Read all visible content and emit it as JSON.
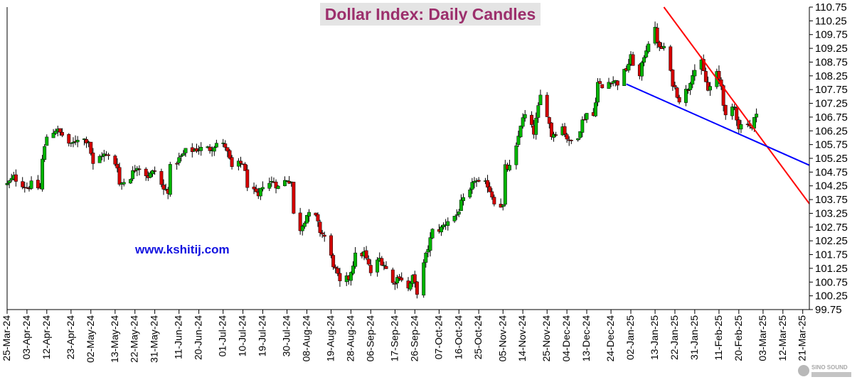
{
  "chart_data": {
    "type": "candlestick",
    "title": "Dollar Index: Daily Candles",
    "annotation": "www.kshitij.com",
    "ylim": [
      99.75,
      110.75
    ],
    "y_ticks": [
      "99.75",
      "100.25",
      "100.75",
      "101.25",
      "101.75",
      "102.25",
      "102.75",
      "103.25",
      "103.75",
      "104.25",
      "104.75",
      "105.25",
      "105.75",
      "106.25",
      "106.75",
      "107.25",
      "107.75",
      "108.25",
      "108.75",
      "109.25",
      "109.75",
      "110.25",
      "110.75"
    ],
    "x_range": [
      "2024-03-25",
      "2025-03-24"
    ],
    "x_ticks": [
      "25-Mar-24",
      "03-Apr-24",
      "12-Apr-24",
      "23-Apr-24",
      "02-May-24",
      "13-May-24",
      "22-May-24",
      "31-May-24",
      "11-Jun-24",
      "20-Jun-24",
      "01-Jul-24",
      "10-Jul-24",
      "19-Jul-24",
      "30-Jul-24",
      "08-Aug-24",
      "19-Aug-24",
      "28-Aug-24",
      "06-Sep-24",
      "17-Sep-24",
      "26-Sep-24",
      "07-Oct-24",
      "16-Oct-24",
      "25-Oct-24",
      "05-Nov-24",
      "14-Nov-24",
      "25-Nov-24",
      "04-Dec-24",
      "13-Dec-24",
      "24-Dec-24",
      "02-Jan-25",
      "13-Jan-25",
      "22-Jan-25",
      "31-Jan-25",
      "11-Feb-25",
      "20-Feb-25",
      "03-Mar-25",
      "12-Mar-25",
      "21-Mar-25"
    ],
    "up_color": "#00b400",
    "down_color": "#d40000",
    "close_path": [
      [
        "2024-03-25",
        104.3
      ],
      [
        "2024-03-28",
        104.55
      ],
      [
        "2024-04-03",
        104.2
      ],
      [
        "2024-04-05",
        104.3
      ],
      [
        "2024-04-09",
        104.15
      ],
      [
        "2024-04-10",
        105.2
      ],
      [
        "2024-04-12",
        106.05
      ],
      [
        "2024-04-16",
        106.3
      ],
      [
        "2024-04-19",
        106.1
      ],
      [
        "2024-04-23",
        105.7
      ],
      [
        "2024-04-26",
        106.0
      ],
      [
        "2024-05-01",
        105.9
      ],
      [
        "2024-05-03",
        105.0
      ],
      [
        "2024-05-07",
        105.4
      ],
      [
        "2024-05-10",
        105.3
      ],
      [
        "2024-05-14",
        105.0
      ],
      [
        "2024-05-15",
        104.3
      ],
      [
        "2024-05-20",
        104.6
      ],
      [
        "2024-05-23",
        105.0
      ],
      [
        "2024-05-28",
        104.6
      ],
      [
        "2024-05-31",
        104.8
      ],
      [
        "2024-06-04",
        104.1
      ],
      [
        "2024-06-06",
        104.1
      ],
      [
        "2024-06-07",
        104.9
      ],
      [
        "2024-06-12",
        105.3
      ],
      [
        "2024-06-14",
        105.5
      ],
      [
        "2024-06-20",
        105.6
      ],
      [
        "2024-06-25",
        105.6
      ],
      [
        "2024-06-28",
        105.8
      ],
      [
        "2024-07-02",
        105.7
      ],
      [
        "2024-07-05",
        104.9
      ],
      [
        "2024-07-10",
        105.1
      ],
      [
        "2024-07-12",
        104.3
      ],
      [
        "2024-07-17",
        103.8
      ],
      [
        "2024-07-19",
        104.3
      ],
      [
        "2024-07-24",
        104.4
      ],
      [
        "2024-07-26",
        104.2
      ],
      [
        "2024-07-30",
        104.5
      ],
      [
        "2024-08-01",
        104.4
      ],
      [
        "2024-08-02",
        103.2
      ],
      [
        "2024-08-05",
        102.7
      ],
      [
        "2024-08-08",
        103.2
      ],
      [
        "2024-08-12",
        103.1
      ],
      [
        "2024-08-14",
        102.6
      ],
      [
        "2024-08-16",
        102.4
      ],
      [
        "2024-08-20",
        101.4
      ],
      [
        "2024-08-23",
        100.7
      ],
      [
        "2024-08-27",
        100.9
      ],
      [
        "2024-08-30",
        101.7
      ],
      [
        "2024-09-03",
        101.8
      ],
      [
        "2024-09-06",
        101.1
      ],
      [
        "2024-09-10",
        101.6
      ],
      [
        "2024-09-12",
        101.4
      ],
      [
        "2024-09-16",
        100.7
      ],
      [
        "2024-09-19",
        101.0
      ],
      [
        "2024-09-23",
        100.5
      ],
      [
        "2024-09-25",
        100.9
      ],
      [
        "2024-09-27",
        100.4
      ],
      [
        "2024-10-01",
        101.7
      ],
      [
        "2024-10-04",
        102.6
      ],
      [
        "2024-10-08",
        102.7
      ],
      [
        "2024-10-11",
        103.0
      ],
      [
        "2024-10-15",
        103.2
      ],
      [
        "2024-10-17",
        103.6
      ],
      [
        "2024-10-21",
        104.0
      ],
      [
        "2024-10-23",
        104.5
      ],
      [
        "2024-10-25",
        104.3
      ],
      [
        "2024-10-29",
        104.3
      ],
      [
        "2024-11-01",
        103.7
      ],
      [
        "2024-11-05",
        103.5
      ],
      [
        "2024-11-06",
        104.9
      ],
      [
        "2024-11-08",
        104.9
      ],
      [
        "2024-11-11",
        105.6
      ],
      [
        "2024-11-13",
        106.5
      ],
      [
        "2024-11-15",
        106.8
      ],
      [
        "2024-11-19",
        106.2
      ],
      [
        "2024-11-22",
        107.5
      ],
      [
        "2024-11-25",
        106.9
      ],
      [
        "2024-11-27",
        106.1
      ],
      [
        "2024-12-02",
        106.4
      ],
      [
        "2024-12-05",
        105.8
      ],
      [
        "2024-12-09",
        106.1
      ],
      [
        "2024-12-11",
        106.6
      ],
      [
        "2024-12-13",
        106.9
      ],
      [
        "2024-12-16",
        106.8
      ],
      [
        "2024-12-18",
        108.0
      ],
      [
        "2024-12-20",
        107.8
      ],
      [
        "2024-12-24",
        108.1
      ],
      [
        "2024-12-27",
        108.0
      ],
      [
        "2024-12-31",
        108.5
      ],
      [
        "2025-01-02",
        108.9
      ],
      [
        "2025-01-06",
        108.2
      ],
      [
        "2025-01-08",
        109.0
      ],
      [
        "2025-01-10",
        109.5
      ],
      [
        "2025-01-13",
        109.9
      ],
      [
        "2025-01-15",
        109.2
      ],
      [
        "2025-01-17",
        109.3
      ],
      [
        "2025-01-21",
        108.0
      ],
      [
        "2025-01-24",
        107.4
      ],
      [
        "2025-01-28",
        107.8
      ],
      [
        "2025-01-30",
        108.4
      ],
      [
        "2025-02-03",
        108.7
      ],
      [
        "2025-02-06",
        107.7
      ],
      [
        "2025-02-10",
        108.3
      ],
      [
        "2025-02-12",
        107.9
      ],
      [
        "2025-02-14",
        106.7
      ],
      [
        "2025-02-18",
        107.1
      ],
      [
        "2025-02-20",
        106.4
      ],
      [
        "2025-02-24",
        106.6
      ],
      [
        "2025-02-26",
        106.3
      ],
      [
        "2025-02-28",
        107.0
      ]
    ],
    "trendlines": [
      {
        "color": "#ff0000",
        "points": [
          [
            "2025-01-17",
            110.75
          ],
          [
            "2025-03-24",
            103.6
          ]
        ]
      },
      {
        "color": "#0000ff",
        "points": [
          [
            "2024-12-31",
            107.95
          ],
          [
            "2025-03-24",
            105.0
          ]
        ]
      }
    ],
    "grid": false
  }
}
